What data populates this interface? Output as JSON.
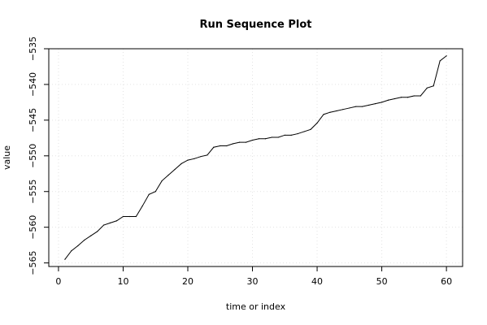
{
  "chart_data": {
    "type": "line",
    "title": "Run Sequence Plot",
    "xlabel": "time or index",
    "ylabel": "value",
    "xlim": [
      -1.5,
      62.5
    ],
    "ylim": [
      -565.5,
      -535.0
    ],
    "x_ticks": [
      0,
      10,
      20,
      30,
      40,
      50,
      60
    ],
    "y_ticks": [
      -565,
      -560,
      -555,
      -550,
      -545,
      -540,
      -535
    ],
    "grid": true,
    "series": [
      {
        "x": [
          1,
          2,
          3,
          4,
          5,
          6,
          7,
          8,
          9,
          10,
          11,
          12,
          13,
          14,
          15,
          16,
          17,
          18,
          19,
          20,
          21,
          22,
          23,
          24,
          25,
          26,
          27,
          28,
          29,
          30,
          31,
          32,
          33,
          34,
          35,
          36,
          37,
          38,
          39,
          40,
          41,
          42,
          43,
          44,
          45,
          46,
          47,
          48,
          49,
          50,
          51,
          52,
          53,
          54,
          55,
          56,
          57,
          58,
          59,
          60
        ],
        "values": [
          -564.5,
          -563.3,
          -562.6,
          -561.8,
          -561.2,
          -560.6,
          -559.7,
          -559.4,
          -559.1,
          -558.5,
          -558.5,
          -558.5,
          -557.0,
          -555.4,
          -555.0,
          -553.5,
          -552.7,
          -551.9,
          -551.1,
          -550.6,
          -550.4,
          -550.1,
          -549.9,
          -548.8,
          -548.6,
          -548.6,
          -548.3,
          -548.1,
          -548.1,
          -547.8,
          -547.6,
          -547.6,
          -547.4,
          -547.4,
          -547.1,
          -547.1,
          -546.9,
          -546.6,
          -546.3,
          -545.4,
          -544.2,
          -543.9,
          -543.7,
          -543.5,
          -543.3,
          -543.1,
          -543.1,
          -542.9,
          -542.7,
          -542.5,
          -542.2,
          -542.0,
          -541.8,
          -541.8,
          -541.6,
          -541.6,
          -540.5,
          -540.2,
          -536.7,
          -536.0
        ]
      }
    ]
  }
}
